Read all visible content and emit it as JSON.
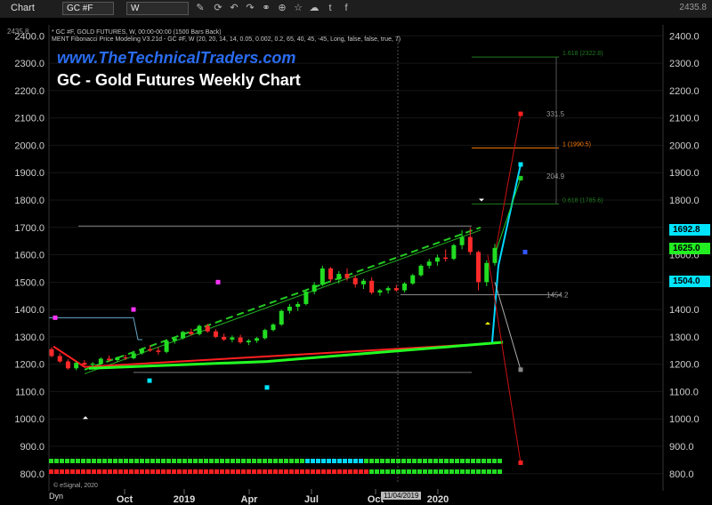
{
  "toolbar": {
    "title": "Chart",
    "symbol": "GC #F",
    "interval": "W",
    "right_value": "2435.8",
    "icons": [
      "draw-icon",
      "refresh-icon",
      "undo-icon",
      "redo-icon",
      "link-icon",
      "cart-icon",
      "star-icon",
      "cloud-icon",
      "twitter-icon",
      "facebook-icon"
    ]
  },
  "chart": {
    "info_line1": "* GC #F, GOLD FUTURES, W, 00:00-00:00 (1500 Bars Back)",
    "info_line2": "MENT Fibonacci Price Modeling V3.21d - GC #F, W (20, 20, 14, 14, 0.05, 0.002, 0.2, 65, 40, 45, -45, Long, false, false, true, 7)",
    "watermark": "www.TheTechnicalTraders.com",
    "headline": "GC - Gold Futures Weekly Chart",
    "footer": "Dyn",
    "esignal": "© eSignal, 2020",
    "crosshair_date": "11/04/2019",
    "colors": {
      "background": "#000000",
      "up": "#22dd22",
      "down": "#ff2020",
      "cyan": "#00d8ff",
      "grid": "#1a1a1a"
    }
  },
  "chart_data": {
    "type": "candlestick",
    "x_ticks": [
      "Oct",
      "2019",
      "Apr",
      "Jul",
      "Oct",
      "2020"
    ],
    "y_ticks": [
      800,
      900,
      1000,
      1100,
      1200,
      1300,
      1400,
      1500,
      1600,
      1700,
      1800,
      1900,
      2000,
      2100,
      2200,
      2300,
      2400
    ],
    "ylim": [
      770,
      2440
    ],
    "top_value": "2435.8",
    "price_tags": [
      {
        "value": 1692.8,
        "label": "1692.8",
        "color": "#00e5ff"
      },
      {
        "value": 1625.0,
        "label": "1625.0",
        "color": "#22ee22"
      },
      {
        "value": 1504.0,
        "label": "1504.0",
        "color": "#00e5ff"
      }
    ],
    "fib_levels": [
      {
        "value": 2322.8,
        "label": "1.618 (2322.8)",
        "color": "#1f7a1f"
      },
      {
        "value": 1990.5,
        "label": "1 (1990.5)",
        "color": "#ff7a00"
      },
      {
        "value": 1785.6,
        "label": "0.618 (1785.6)",
        "color": "#1f7a1f"
      }
    ],
    "annotations": [
      {
        "value": 2115,
        "label": "331.5"
      },
      {
        "value": 1888,
        "label": "204.9"
      },
      {
        "value": 1454.2,
        "label": "1454.2"
      }
    ],
    "candles": [
      [
        1255,
        1262,
        1225,
        1230
      ],
      [
        1230,
        1240,
        1205,
        1210
      ],
      [
        1210,
        1218,
        1180,
        1185
      ],
      [
        1185,
        1210,
        1178,
        1205
      ],
      [
        1205,
        1215,
        1195,
        1198
      ],
      [
        1198,
        1208,
        1185,
        1202
      ],
      [
        1202,
        1225,
        1198,
        1220
      ],
      [
        1220,
        1232,
        1210,
        1215
      ],
      [
        1215,
        1228,
        1208,
        1225
      ],
      [
        1225,
        1235,
        1215,
        1222
      ],
      [
        1222,
        1245,
        1218,
        1240
      ],
      [
        1240,
        1260,
        1235,
        1255
      ],
      [
        1255,
        1270,
        1245,
        1250
      ],
      [
        1250,
        1262,
        1235,
        1245
      ],
      [
        1245,
        1290,
        1240,
        1285
      ],
      [
        1285,
        1300,
        1275,
        1295
      ],
      [
        1295,
        1322,
        1290,
        1318
      ],
      [
        1318,
        1330,
        1305,
        1310
      ],
      [
        1310,
        1345,
        1305,
        1340
      ],
      [
        1340,
        1348,
        1315,
        1320
      ],
      [
        1320,
        1328,
        1295,
        1300
      ],
      [
        1300,
        1312,
        1285,
        1290
      ],
      [
        1290,
        1305,
        1280,
        1298
      ],
      [
        1298,
        1308,
        1275,
        1280
      ],
      [
        1280,
        1292,
        1270,
        1286
      ],
      [
        1286,
        1300,
        1278,
        1295
      ],
      [
        1295,
        1330,
        1290,
        1325
      ],
      [
        1325,
        1350,
        1320,
        1345
      ],
      [
        1345,
        1400,
        1340,
        1395
      ],
      [
        1395,
        1420,
        1385,
        1410
      ],
      [
        1410,
        1428,
        1395,
        1420
      ],
      [
        1420,
        1470,
        1415,
        1465
      ],
      [
        1465,
        1500,
        1455,
        1490
      ],
      [
        1490,
        1560,
        1485,
        1550
      ],
      [
        1550,
        1555,
        1500,
        1510
      ],
      [
        1510,
        1540,
        1495,
        1530
      ],
      [
        1530,
        1550,
        1505,
        1515
      ],
      [
        1515,
        1525,
        1480,
        1492
      ],
      [
        1492,
        1512,
        1475,
        1505
      ],
      [
        1505,
        1518,
        1455,
        1462
      ],
      [
        1462,
        1475,
        1450,
        1470
      ],
      [
        1470,
        1485,
        1458,
        1478
      ],
      [
        1478,
        1490,
        1465,
        1470
      ],
      [
        1470,
        1500,
        1462,
        1495
      ],
      [
        1495,
        1530,
        1490,
        1525
      ],
      [
        1525,
        1565,
        1520,
        1560
      ],
      [
        1560,
        1585,
        1550,
        1575
      ],
      [
        1575,
        1600,
        1560,
        1590
      ],
      [
        1590,
        1620,
        1575,
        1585
      ],
      [
        1585,
        1640,
        1580,
        1635
      ],
      [
        1635,
        1690,
        1620,
        1665
      ],
      [
        1665,
        1700,
        1600,
        1610
      ],
      [
        1610,
        1615,
        1470,
        1500
      ],
      [
        1500,
        1580,
        1485,
        1570
      ],
      [
        1570,
        1640,
        1560,
        1625
      ]
    ]
  }
}
